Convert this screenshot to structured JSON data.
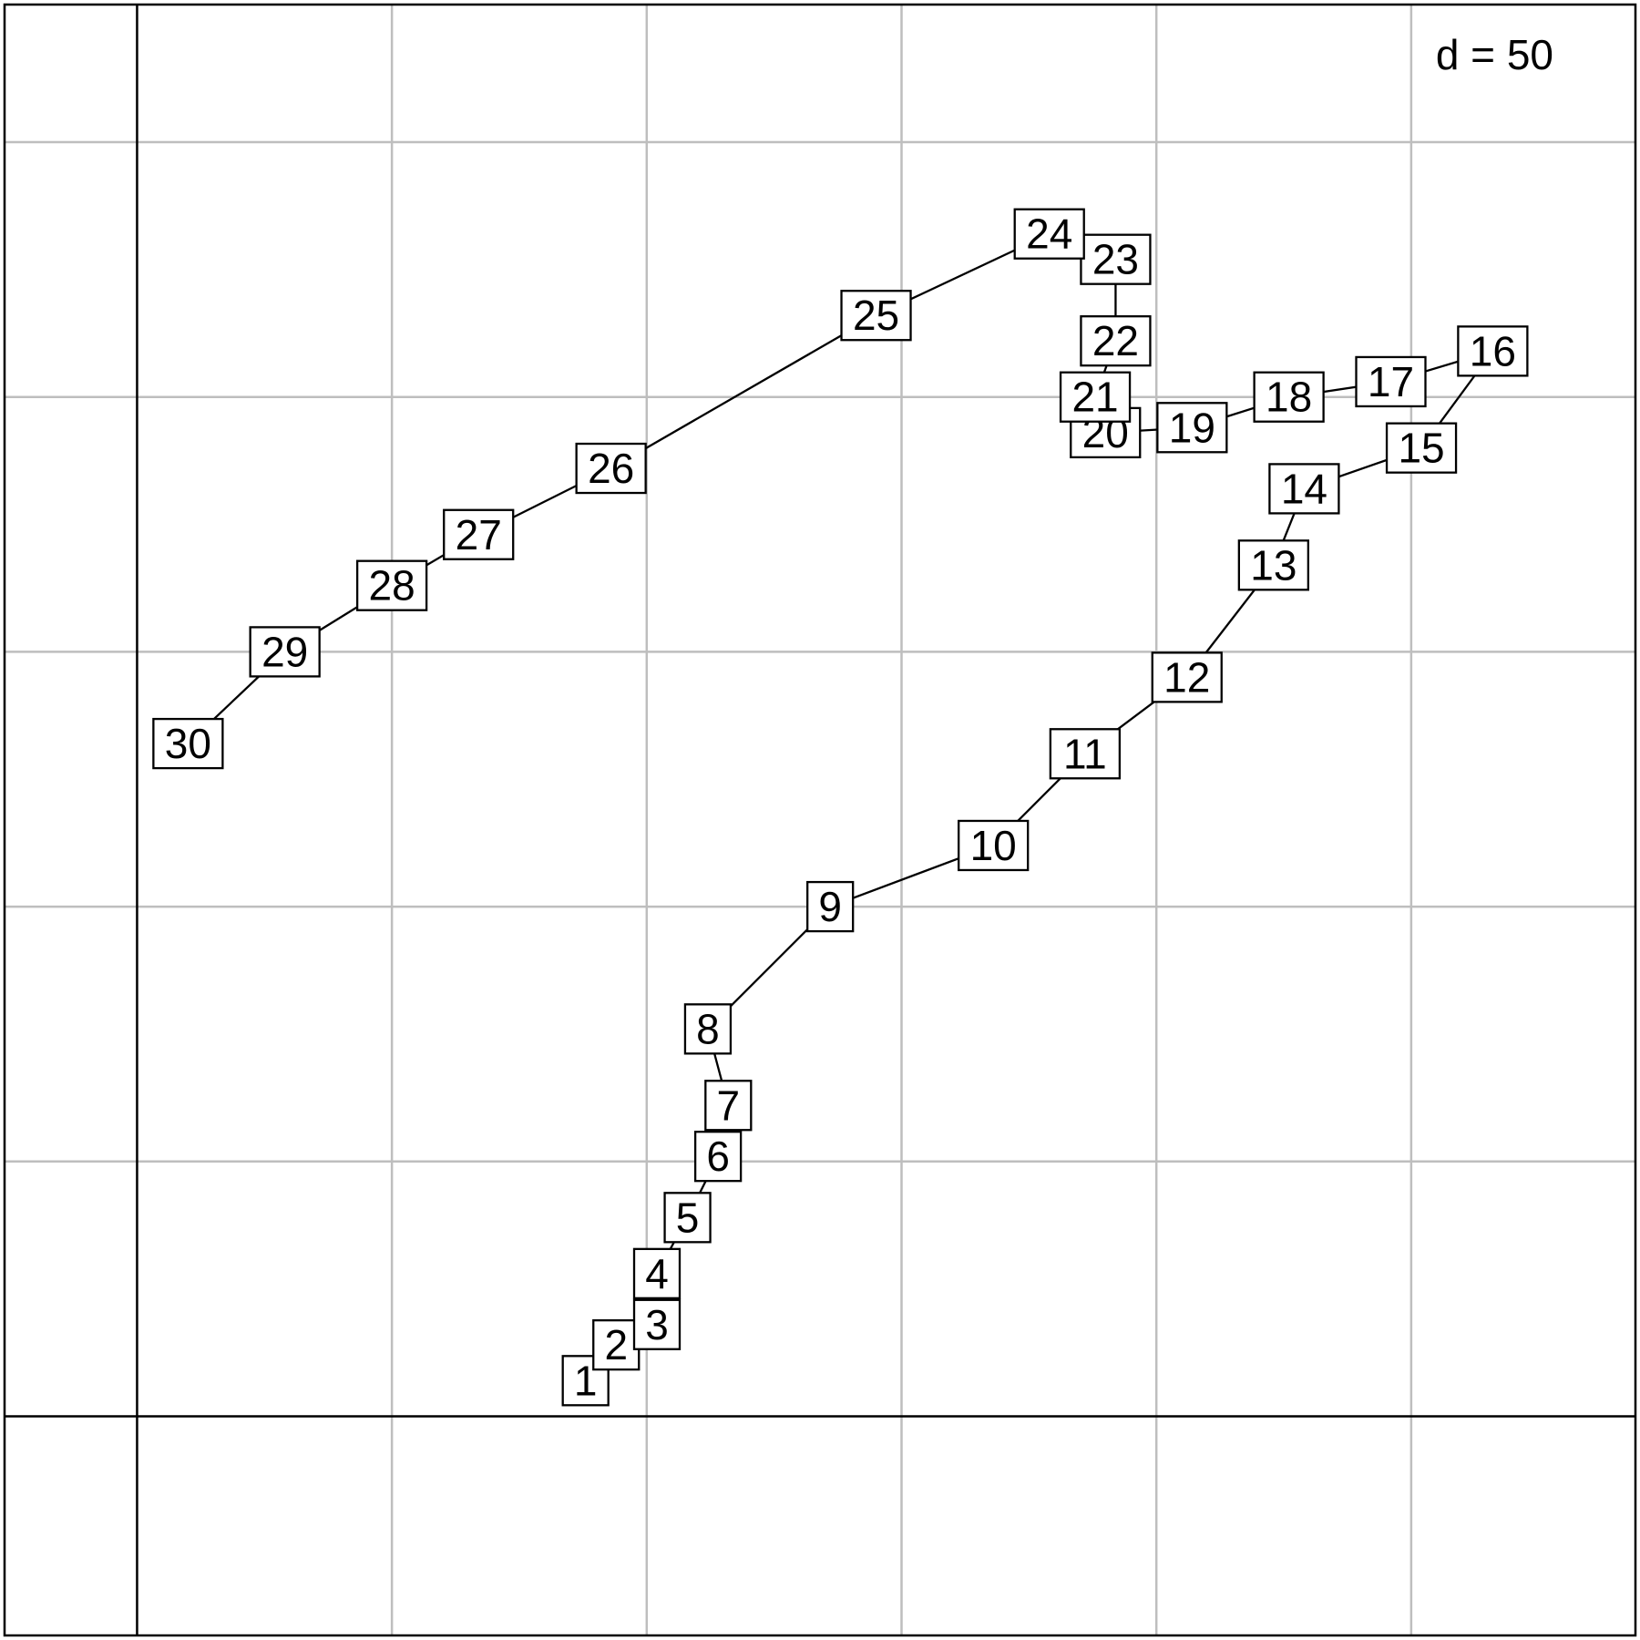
{
  "chart_data": {
    "type": "line",
    "grid_step_label": "d = 50",
    "grid_step": 50,
    "grid": true,
    "xlim": [
      -26,
      294
    ],
    "ylim": [
      -43,
      277
    ],
    "points": [
      {
        "label": "1",
        "x": 88,
        "y": 7
      },
      {
        "label": "2",
        "x": 94,
        "y": 14
      },
      {
        "label": "3",
        "x": 102,
        "y": 18
      },
      {
        "label": "4",
        "x": 102,
        "y": 28
      },
      {
        "label": "5",
        "x": 108,
        "y": 39
      },
      {
        "label": "6",
        "x": 114,
        "y": 51
      },
      {
        "label": "7",
        "x": 116,
        "y": 61
      },
      {
        "label": "8",
        "x": 112,
        "y": 76
      },
      {
        "label": "9",
        "x": 136,
        "y": 100
      },
      {
        "label": "10",
        "x": 168,
        "y": 112
      },
      {
        "label": "11",
        "x": 186,
        "y": 130
      },
      {
        "label": "12",
        "x": 206,
        "y": 145
      },
      {
        "label": "13",
        "x": 223,
        "y": 167
      },
      {
        "label": "14",
        "x": 229,
        "y": 182
      },
      {
        "label": "15",
        "x": 252,
        "y": 190
      },
      {
        "label": "16",
        "x": 266,
        "y": 209
      },
      {
        "label": "17",
        "x": 246,
        "y": 203
      },
      {
        "label": "18",
        "x": 226,
        "y": 200
      },
      {
        "label": "19",
        "x": 207,
        "y": 194
      },
      {
        "label": "20",
        "x": 190,
        "y": 193
      },
      {
        "label": "21",
        "x": 188,
        "y": 200
      },
      {
        "label": "22",
        "x": 192,
        "y": 211
      },
      {
        "label": "23",
        "x": 192,
        "y": 227
      },
      {
        "label": "24",
        "x": 179,
        "y": 232
      },
      {
        "label": "25",
        "x": 145,
        "y": 216
      },
      {
        "label": "26",
        "x": 93,
        "y": 186
      },
      {
        "label": "27",
        "x": 67,
        "y": 173
      },
      {
        "label": "28",
        "x": 50,
        "y": 163
      },
      {
        "label": "29",
        "x": 29,
        "y": 150
      },
      {
        "label": "30",
        "x": 10,
        "y": 132
      }
    ]
  }
}
